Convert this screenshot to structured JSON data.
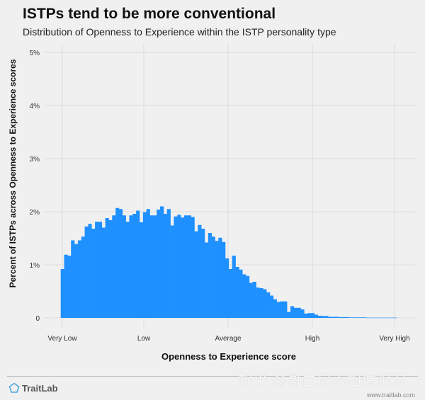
{
  "chart_data": {
    "type": "bar",
    "title": "ISTPs tend to be more conventional",
    "subtitle": "Distribution of Openness to Experience within the ISTP personality type",
    "xlabel": "Openness to Experience score",
    "ylabel": "Percent of ISTPs across Openness to Experience scores",
    "x_ticks": [
      "Very Low",
      "Low",
      "Average",
      "High",
      "Very High"
    ],
    "y_ticks": [
      "0",
      "1%",
      "2%",
      "3%",
      "4%",
      "5%"
    ],
    "ylim": [
      0,
      5
    ],
    "grid": true,
    "color": "#1e90ff",
    "values": [
      0.92,
      1.19,
      1.17,
      1.46,
      1.39,
      1.46,
      1.53,
      1.72,
      1.77,
      1.68,
      1.81,
      1.81,
      1.7,
      1.88,
      1.84,
      1.93,
      2.07,
      2.05,
      1.93,
      1.81,
      1.93,
      1.96,
      2.02,
      1.8,
      1.99,
      2.05,
      1.93,
      1.93,
      2.04,
      2.1,
      1.96,
      2.05,
      1.74,
      1.91,
      1.94,
      1.89,
      1.93,
      1.93,
      1.9,
      1.63,
      1.75,
      1.68,
      1.42,
      1.6,
      1.53,
      1.45,
      1.51,
      1.43,
      1.12,
      0.92,
      1.17,
      0.96,
      0.91,
      0.82,
      0.79,
      0.66,
      0.68,
      0.57,
      0.56,
      0.54,
      0.48,
      0.42,
      0.35,
      0.3,
      0.31,
      0.31,
      0.11,
      0.22,
      0.19,
      0.19,
      0.16,
      0.08,
      0.09,
      0.09,
      0.06,
      0.04,
      0.035,
      0.035,
      0.02,
      0.02,
      0.02,
      0.015,
      0.015,
      0.015,
      0.01,
      0.01,
      0.01,
      0.01,
      0.01,
      0.005,
      0.005,
      0.005,
      0.005,
      0.005,
      0.005,
      0.005,
      0.005,
      0.005
    ]
  },
  "footer": {
    "brand": "TraitLab",
    "url": "www.traitlab.com",
    "watermark": "知乎 @哥白尼不相信眼泪"
  }
}
